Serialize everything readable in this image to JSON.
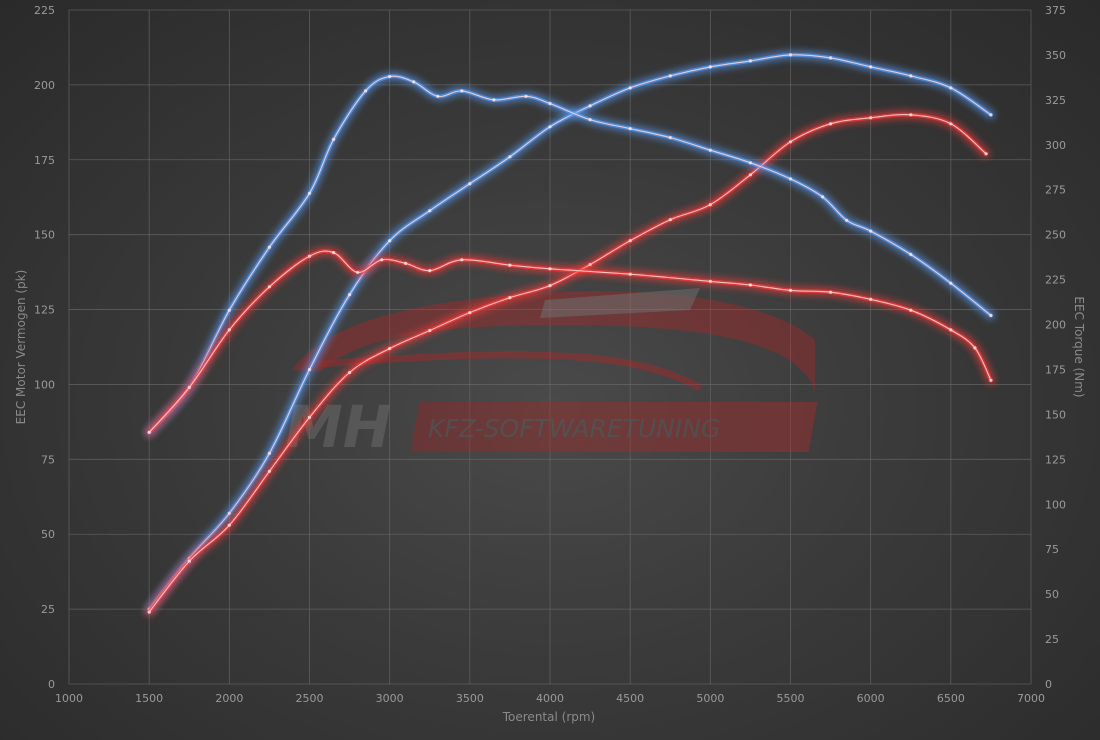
{
  "chart_data": {
    "type": "line",
    "xlabel": "Toerental (rpm)",
    "ylabel_left": "EEC Motor Vermogen (pk)",
    "ylabel_right": "EEC Torque (Nm)",
    "xlim": [
      1000,
      7000
    ],
    "ylim_left": [
      0,
      225
    ],
    "ylim_right": [
      0,
      375
    ],
    "x_ticks": [
      1000,
      1500,
      2000,
      2500,
      3000,
      3500,
      4000,
      4500,
      5000,
      5500,
      6000,
      6500,
      7000
    ],
    "y_ticks_left": [
      0,
      25,
      50,
      75,
      100,
      125,
      150,
      175,
      200,
      225
    ],
    "y_ticks_right": [
      0,
      25,
      50,
      75,
      100,
      125,
      150,
      175,
      200,
      225,
      250,
      275,
      300,
      325,
      350,
      375
    ],
    "grid": true,
    "series": [
      {
        "color": "#5aa0ff",
        "axis": "left",
        "x": [
          1500,
          1750,
          2000,
          2250,
          2500,
          2750,
          3000,
          3250,
          3500,
          3750,
          4000,
          4250,
          4500,
          4750,
          5000,
          5250,
          5500,
          5750,
          6000,
          6250,
          6500,
          6750
        ],
        "y": [
          25,
          42,
          57,
          77,
          105,
          130,
          148,
          158,
          167,
          176,
          186,
          193,
          199,
          203,
          206,
          208,
          210,
          209,
          206,
          203,
          199,
          190
        ]
      },
      {
        "color": "#ff3a3a",
        "axis": "left",
        "x": [
          1500,
          1750,
          2000,
          2250,
          2500,
          2750,
          3000,
          3250,
          3500,
          3750,
          4000,
          4250,
          4500,
          4750,
          5000,
          5250,
          5500,
          5750,
          6000,
          6250,
          6500,
          6720
        ],
        "y": [
          24,
          41,
          53,
          71,
          89,
          104,
          112,
          118,
          124,
          129,
          133,
          140,
          148,
          155,
          160,
          170,
          181,
          187,
          189,
          190,
          187,
          177
        ]
      },
      {
        "color": "#5aa0ff",
        "axis": "right",
        "x": [
          1500,
          1750,
          2000,
          2250,
          2500,
          2650,
          2850,
          3000,
          3150,
          3300,
          3450,
          3650,
          3850,
          4000,
          4250,
          4500,
          4750,
          5000,
          5250,
          5500,
          5700,
          5850,
          6000,
          6250,
          6500,
          6750
        ],
        "y": [
          140,
          165,
          208,
          243,
          273,
          303,
          330,
          338,
          335,
          327,
          330,
          325,
          327,
          323,
          314,
          309,
          304,
          297,
          290,
          281,
          271,
          258,
          252,
          239,
          223,
          205
        ]
      },
      {
        "color": "#ff3a3a",
        "axis": "right",
        "x": [
          1500,
          1750,
          2000,
          2250,
          2500,
          2650,
          2800,
          2950,
          3100,
          3250,
          3450,
          3750,
          4000,
          4500,
          5000,
          5250,
          5500,
          5750,
          6000,
          6250,
          6500,
          6650,
          6750
        ],
        "y": [
          140,
          165,
          197,
          221,
          238,
          240,
          229,
          236,
          234,
          230,
          236,
          233,
          231,
          228,
          224,
          222,
          219,
          218,
          214,
          208,
          197,
          187,
          169
        ]
      }
    ]
  }
}
